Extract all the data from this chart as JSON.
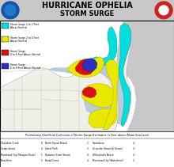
{
  "title1": "HURRICANE OPHELIA",
  "title2": "STORM SURGE",
  "bg_color": "#c8c8c8",
  "legend": [
    {
      "label": "Storm Surge 1 to 2 Feet\nAbove Normal",
      "color": "#00dede"
    },
    {
      "label": "Storm Surge 2 to 4 Feet\nAbove Normal",
      "color": "#e8e800"
    },
    {
      "label": "Storm Surge\n4 to 6 Feet Above Normal",
      "color": "#dd1010"
    },
    {
      "label": "Storm Surge\n6 to 8 Feet Above Normal",
      "color": "#3030bb"
    }
  ],
  "footer": "Preliminary Unofficial Collection of Storm Surge Estimates in Feet above Mean Sea Level",
  "footer_data": [
    [
      "Chalafoot Creek",
      "8",
      "North Topsail Beach",
      "1",
      "Swansboro",
      "4"
    ],
    [
      "Cedar Island",
      "4",
      "Salter Path",
      "3",
      "Ocracoke (Sound & Ocean)",
      "3"
    ],
    [
      "Morehead City (Newport River)",
      "5",
      "Beaufort (Front Street)",
      "4",
      "Whitchard's Beach",
      "4"
    ],
    [
      "New Bern",
      "5",
      "Broad Creek",
      "4",
      "Morehead City (Waterfront)",
      "2"
    ]
  ],
  "surge_cyan": "#00dede",
  "surge_yellow": "#e8e800",
  "surge_red": "#dd1010",
  "surge_blue": "#3030bb",
  "land_color": "#f0f0e8",
  "ocean_color": "#c8c8c8",
  "water_color": "#c0d8e0",
  "pamlico_color": "#b8ccd8"
}
